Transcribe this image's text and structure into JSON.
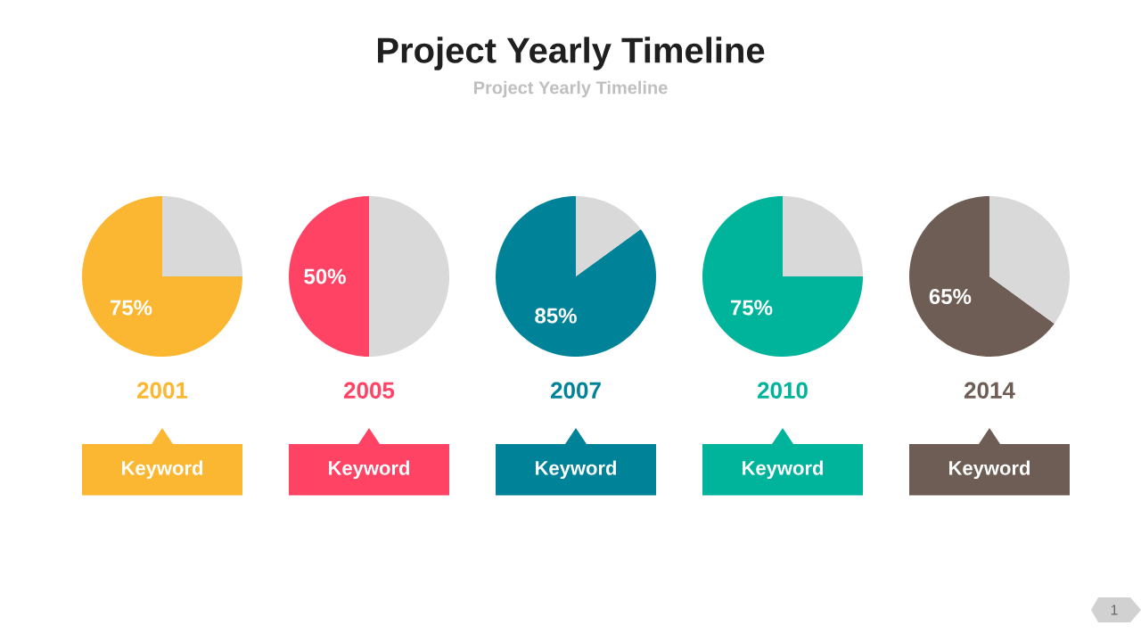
{
  "chart_data": [
    {
      "type": "other",
      "title": "Project Yearly Timeline",
      "subtitle": "Project Yearly Timeline",
      "annotations": [
        "1"
      ]
    },
    {
      "type": "pie",
      "xlabel": "2001",
      "categories": [
        null,
        null
      ],
      "values": [
        75,
        25
      ],
      "colors": [
        "#fbb731",
        "#d9d9d9"
      ],
      "value_labels": [
        "75%",
        null
      ],
      "annotations": [
        "Keyword"
      ]
    },
    {
      "type": "pie",
      "xlabel": "2005",
      "categories": [
        null,
        null
      ],
      "values": [
        50,
        50
      ],
      "colors": [
        "#fe4365",
        "#d9d9d9"
      ],
      "value_labels": [
        "50%",
        null
      ],
      "annotations": [
        "Keyword"
      ]
    },
    {
      "type": "pie",
      "xlabel": "2007",
      "categories": [
        null,
        null
      ],
      "values": [
        85,
        15
      ],
      "colors": [
        "#008299",
        "#d9d9d9"
      ],
      "value_labels": [
        "85%",
        null
      ],
      "annotations": [
        "Keyword"
      ]
    },
    {
      "type": "pie",
      "xlabel": "2010",
      "categories": [
        null,
        null
      ],
      "values": [
        75,
        25
      ],
      "colors": [
        "#00b39b",
        "#d9d9d9"
      ],
      "value_labels": [
        "75%",
        null
      ],
      "annotations": [
        "Keyword"
      ]
    },
    {
      "type": "pie",
      "xlabel": "2014",
      "categories": [
        null,
        null
      ],
      "values": [
        65,
        35
      ],
      "colors": [
        "#6e5d54",
        "#d9d9d9"
      ],
      "value_labels": [
        "65%",
        null
      ],
      "annotations": [
        "Keyword"
      ]
    }
  ]
}
